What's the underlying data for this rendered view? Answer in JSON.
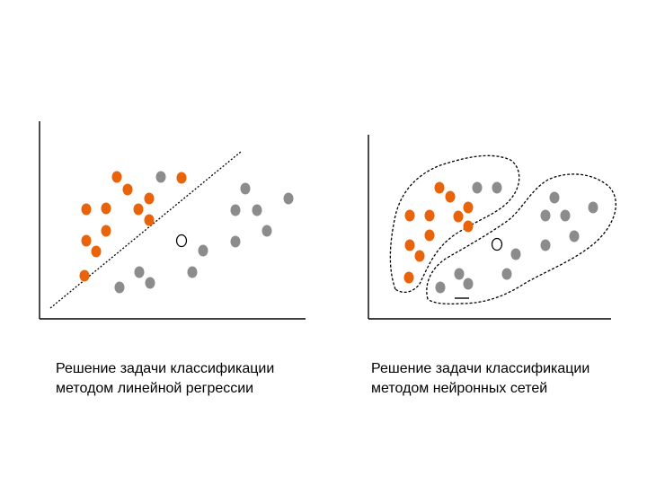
{
  "colors": {
    "class_a": "#e8630a",
    "class_b": "#8c8c8c",
    "unknown": "#ffffff",
    "outline": "#000000",
    "axis": "#000000"
  },
  "panels": [
    {
      "id": "linear",
      "caption": [
        "Решение задачи классификации",
        "методом линейной регрессии"
      ]
    },
    {
      "id": "neural",
      "caption": [
        "Решение задачи классификации",
        "методом нейронных сетей"
      ]
    }
  ]
}
